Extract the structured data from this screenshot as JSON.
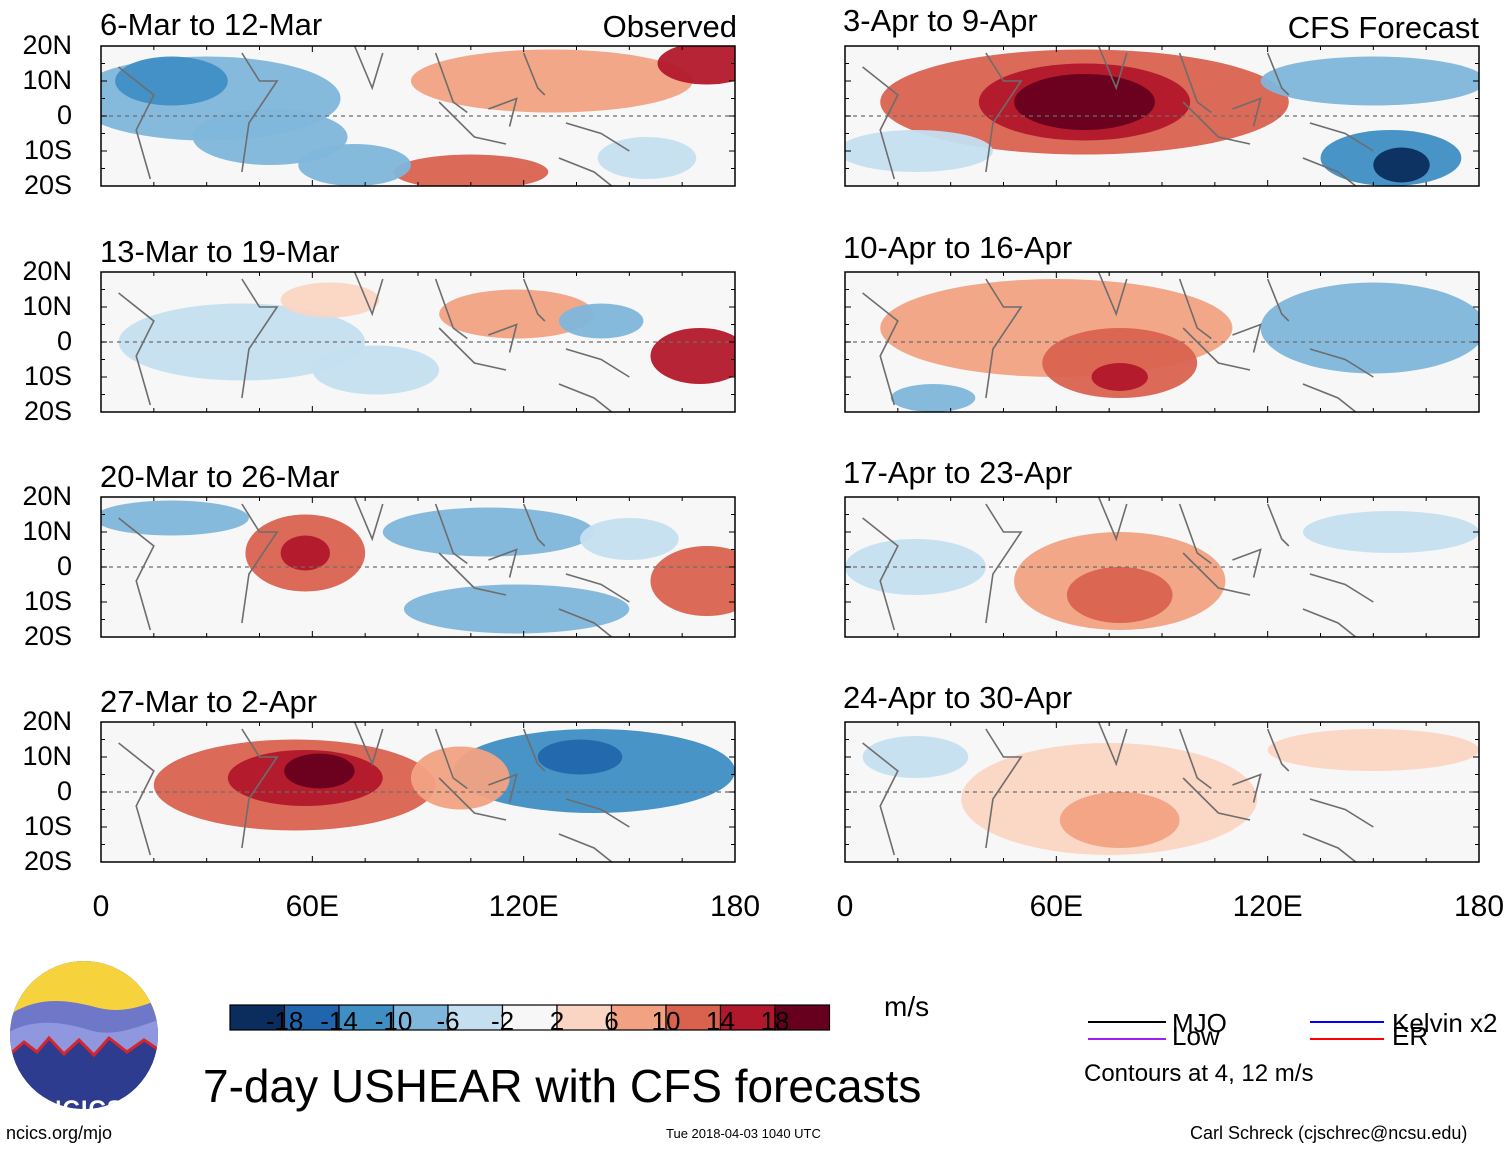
{
  "chart_data": {
    "type": "heatmap",
    "title": "7-day USHEAR with CFS forecasts",
    "variable": "USHEAR",
    "units": "m/s",
    "x_ticks": [
      "0",
      "60E",
      "120E",
      "180"
    ],
    "y_ticks": [
      "20N",
      "10N",
      "0",
      "10S",
      "20S"
    ],
    "xlim": [
      0,
      180
    ],
    "ylim": [
      -20,
      20
    ],
    "colorbar": {
      "tick_labels": [
        "-18",
        "-14",
        "-10",
        "-6",
        "-2",
        "2",
        "6",
        "10",
        "14",
        "18"
      ],
      "colors": [
        "#0b2d5e",
        "#2166ac",
        "#3f8ec4",
        "#7fb6db",
        "#c5dff0",
        "#f7f7f7",
        "#fbd5c3",
        "#f2a283",
        "#d9624f",
        "#b2182b",
        "#67001f"
      ]
    },
    "legend": [
      {
        "name": "MJO",
        "color": "#000000"
      },
      {
        "name": "Kelvin x2",
        "color": "#0000ff"
      },
      {
        "name": "Low",
        "color": "#a020f0"
      },
      {
        "name": "ER",
        "color": "#ff0000"
      }
    ],
    "contour_note": "Contours at 4, 12 m/s",
    "columns": [
      {
        "label": "Observed",
        "panels": [
          {
            "title": "6-Mar to 12-Mar",
            "anomalies": [
              {
                "lon": 30,
                "lat": 5,
                "rx": 38,
                "ry": 12,
                "value": -9
              },
              {
                "lon": 20,
                "lat": 10,
                "rx": 16,
                "ry": 7,
                "value": -13
              },
              {
                "lon": 48,
                "lat": -6,
                "rx": 22,
                "ry": 8,
                "value": -7
              },
              {
                "lon": 128,
                "lat": 10,
                "rx": 40,
                "ry": 9,
                "value": 8
              },
              {
                "lon": 172,
                "lat": 15,
                "rx": 14,
                "ry": 6,
                "value": 14
              },
              {
                "lon": 105,
                "lat": -16,
                "rx": 22,
                "ry": 5,
                "value": 13
              },
              {
                "lon": 72,
                "lat": -14,
                "rx": 16,
                "ry": 6,
                "value": -7
              },
              {
                "lon": 155,
                "lat": -12,
                "rx": 14,
                "ry": 6,
                "value": -5
              }
            ]
          },
          {
            "title": "13-Mar to 19-Mar",
            "anomalies": [
              {
                "lon": 40,
                "lat": 0,
                "rx": 35,
                "ry": 11,
                "value": -6
              },
              {
                "lon": 78,
                "lat": -8,
                "rx": 18,
                "ry": 7,
                "value": -6
              },
              {
                "lon": 118,
                "lat": 8,
                "rx": 22,
                "ry": 7,
                "value": 6
              },
              {
                "lon": 170,
                "lat": -4,
                "rx": 14,
                "ry": 8,
                "value": 14
              },
              {
                "lon": 142,
                "lat": 6,
                "rx": 12,
                "ry": 5,
                "value": -7
              },
              {
                "lon": 65,
                "lat": 12,
                "rx": 14,
                "ry": 5,
                "value": 5
              }
            ]
          },
          {
            "title": "20-Mar to 26-Mar",
            "anomalies": [
              {
                "lon": 58,
                "lat": 4,
                "rx": 17,
                "ry": 11,
                "value": 12
              },
              {
                "lon": 58,
                "lat": 4,
                "rx": 7,
                "ry": 5,
                "value": 15
              },
              {
                "lon": 172,
                "lat": -4,
                "rx": 16,
                "ry": 10,
                "value": 11
              },
              {
                "lon": 110,
                "lat": 10,
                "rx": 30,
                "ry": 7,
                "value": -7
              },
              {
                "lon": 118,
                "lat": -12,
                "rx": 32,
                "ry": 7,
                "value": -10
              },
              {
                "lon": 20,
                "lat": 14,
                "rx": 22,
                "ry": 5,
                "value": -7
              },
              {
                "lon": 150,
                "lat": 8,
                "rx": 14,
                "ry": 6,
                "value": -6
              }
            ]
          },
          {
            "title": "27-Mar to 2-Apr",
            "anomalies": [
              {
                "lon": 55,
                "lat": 2,
                "rx": 40,
                "ry": 13,
                "value": 11
              },
              {
                "lon": 58,
                "lat": 4,
                "rx": 22,
                "ry": 8,
                "value": 16
              },
              {
                "lon": 62,
                "lat": 6,
                "rx": 10,
                "ry": 5,
                "value": 19
              },
              {
                "lon": 140,
                "lat": 6,
                "rx": 40,
                "ry": 12,
                "value": -11
              },
              {
                "lon": 136,
                "lat": 10,
                "rx": 12,
                "ry": 5,
                "value": -17
              },
              {
                "lon": 102,
                "lat": 4,
                "rx": 14,
                "ry": 9,
                "value": 6
              }
            ]
          }
        ]
      },
      {
        "label": "CFS Forecast",
        "panels": [
          {
            "title": "3-Apr to 9-Apr",
            "anomalies": [
              {
                "lon": 68,
                "lat": 4,
                "rx": 58,
                "ry": 15,
                "value": 10
              },
              {
                "lon": 68,
                "lat": 4,
                "rx": 30,
                "ry": 11,
                "value": 15
              },
              {
                "lon": 68,
                "lat": 4,
                "rx": 20,
                "ry": 8,
                "value": 19
              },
              {
                "lon": 150,
                "lat": 10,
                "rx": 32,
                "ry": 7,
                "value": -7
              },
              {
                "lon": 155,
                "lat": -12,
                "rx": 20,
                "ry": 8,
                "value": -14
              },
              {
                "lon": 158,
                "lat": -14,
                "rx": 8,
                "ry": 5,
                "value": -19
              },
              {
                "lon": 20,
                "lat": -10,
                "rx": 22,
                "ry": 6,
                "value": -5
              }
            ]
          },
          {
            "title": "10-Apr to 16-Apr",
            "anomalies": [
              {
                "lon": 60,
                "lat": 4,
                "rx": 50,
                "ry": 14,
                "value": 6
              },
              {
                "lon": 78,
                "lat": -6,
                "rx": 22,
                "ry": 10,
                "value": 11
              },
              {
                "lon": 78,
                "lat": -10,
                "rx": 8,
                "ry": 4,
                "value": 15
              },
              {
                "lon": 150,
                "lat": 4,
                "rx": 32,
                "ry": 13,
                "value": -7
              },
              {
                "lon": 25,
                "lat": -16,
                "rx": 12,
                "ry": 4,
                "value": -8
              }
            ]
          },
          {
            "title": "17-Apr to 23-Apr",
            "anomalies": [
              {
                "lon": 78,
                "lat": -4,
                "rx": 30,
                "ry": 14,
                "value": 6
              },
              {
                "lon": 78,
                "lat": -8,
                "rx": 15,
                "ry": 8,
                "value": 10
              },
              {
                "lon": 155,
                "lat": 10,
                "rx": 25,
                "ry": 6,
                "value": -4
              },
              {
                "lon": 20,
                "lat": 0,
                "rx": 20,
                "ry": 8,
                "value": -3
              }
            ]
          },
          {
            "title": "24-Apr to 30-Apr",
            "anomalies": [
              {
                "lon": 75,
                "lat": -2,
                "rx": 42,
                "ry": 16,
                "value": 5
              },
              {
                "lon": 78,
                "lat": -8,
                "rx": 17,
                "ry": 8,
                "value": 8
              },
              {
                "lon": 150,
                "lat": 12,
                "rx": 30,
                "ry": 6,
                "value": 4
              },
              {
                "lon": 20,
                "lat": 10,
                "rx": 15,
                "ry": 6,
                "value": -3
              }
            ]
          }
        ]
      }
    ]
  },
  "branding": {
    "logo_text": "NCICS",
    "site": "ncics.org/mjo",
    "timestamp": "Tue 2018-04-03 1040 UTC",
    "author": "Carl Schreck (cjschrec@ncsu.edu)"
  }
}
